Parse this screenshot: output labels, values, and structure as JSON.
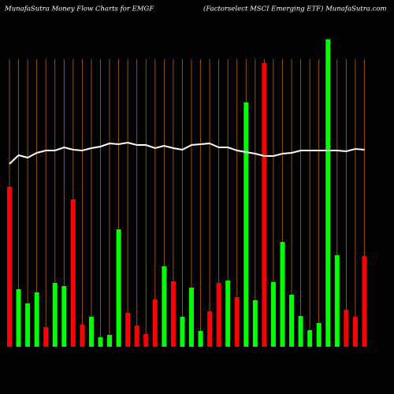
{
  "chart_data": {
    "type": "bar",
    "title": "MunafaSutra  Money Flow  Charts for EMGF",
    "subtitle": "(Factorselect MSCI Emerging ETF) MunafaSutra.com",
    "categories": [
      null,
      null,
      null,
      null,
      null,
      null,
      null,
      null,
      null,
      null,
      null,
      null,
      null,
      null,
      null,
      null,
      null,
      null,
      null,
      null,
      null,
      null,
      null,
      null,
      null,
      null,
      null,
      null,
      null,
      null,
      null,
      null,
      null,
      null,
      null,
      null,
      null,
      null,
      null,
      null
    ],
    "ylim": [
      0,
      400
    ],
    "grid": true,
    "grid_color": "#b8660b",
    "series": [
      {
        "type": "bar",
        "values": [
          203,
          73,
          55,
          69,
          25,
          81,
          77,
          187,
          28,
          38,
          12,
          15,
          149,
          43,
          27,
          16,
          60,
          102,
          83,
          38,
          75,
          20,
          45,
          81,
          84,
          63,
          310,
          59,
          360,
          82,
          133,
          66,
          39,
          21,
          30,
          390,
          116,
          47,
          38,
          115
        ],
        "colors": [
          "#ff0000",
          "#00ff00",
          "#00ff00",
          "#00ff00",
          "#ff0000",
          "#00ff00",
          "#00ff00",
          "#ff0000",
          "#ff0000",
          "#00ff00",
          "#00ff00",
          "#00ff00",
          "#00ff00",
          "#ff0000",
          "#ff0000",
          "#ff0000",
          "#ff0000",
          "#00ff00",
          "#ff0000",
          "#00ff00",
          "#00ff00",
          "#00ff00",
          "#ff0000",
          "#ff0000",
          "#00ff00",
          "#ff0000",
          "#00ff00",
          "#00ff00",
          "#ff0000",
          "#00ff00",
          "#00ff00",
          "#00ff00",
          "#00ff00",
          "#00ff00",
          "#00ff00",
          "#00ff00",
          "#00ff00",
          "#ff0000",
          "#ff0000",
          "#ff0000"
        ]
      },
      {
        "type": "line",
        "color": "#ffffff",
        "values": [
          232,
          243,
          240,
          246,
          249,
          249,
          253,
          250,
          249,
          252,
          254,
          258,
          257,
          259,
          256,
          256,
          252,
          255,
          252,
          250,
          256,
          257,
          258,
          253,
          253,
          249,
          247,
          245,
          242,
          242,
          245,
          246,
          249,
          249,
          249,
          249,
          249,
          248,
          251,
          250
        ]
      }
    ]
  }
}
